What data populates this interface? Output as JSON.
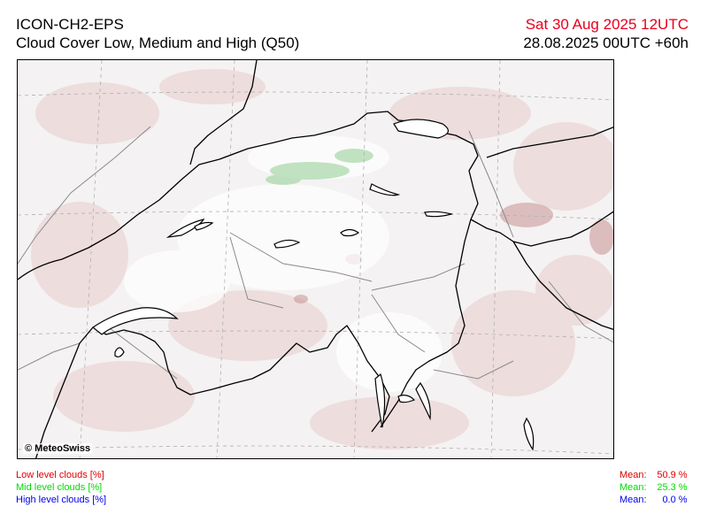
{
  "header": {
    "model": "ICON-CH2-EPS",
    "product": "Cloud Cover Low, Medium and High (Q50)",
    "valid_time": "Sat 30 Aug 2025 12UTC",
    "run_time": "28.08.2025 00UTC +60h",
    "valid_time_color": "#e8001c"
  },
  "map": {
    "copyright": "© MeteoSwiss"
  },
  "legend": {
    "items": [
      {
        "label": "Low level clouds [%]",
        "mean_label": "Mean:",
        "mean_value": "50.9 %",
        "color": "#e00000"
      },
      {
        "label": "Mid level clouds [%]",
        "mean_label": "Mean:",
        "mean_value": "25.3 %",
        "color": "#00dd00"
      },
      {
        "label": "High level clouds [%]",
        "mean_label": "Mean:",
        "mean_value": "0.0 %",
        "color": "#0000ee"
      }
    ]
  }
}
